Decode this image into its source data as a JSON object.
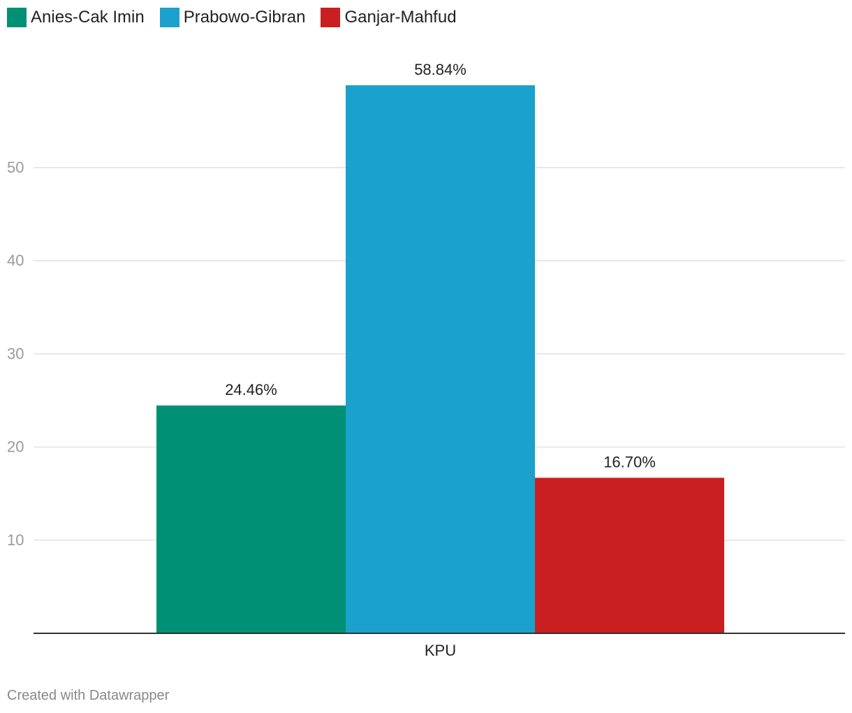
{
  "chart_data": {
    "type": "bar",
    "categories": [
      "KPU"
    ],
    "series": [
      {
        "name": "Anies-Cak Imin",
        "values": [
          24.46
        ],
        "label": "24.46%",
        "color": "#009075"
      },
      {
        "name": "Prabowo-Gibran",
        "values": [
          58.84
        ],
        "label": "58.84%",
        "color": "#1aa1cd"
      },
      {
        "name": "Ganjar-Mahfud",
        "values": [
          16.7
        ],
        "label": "16.70%",
        "color": "#c91f20"
      }
    ],
    "y_ticks": [
      "10",
      "20",
      "30",
      "40",
      "50"
    ],
    "ylim": [
      0,
      58.84
    ],
    "grid": true,
    "legend_position": "top-left",
    "title": "",
    "xlabel": "",
    "ylabel": ""
  },
  "footer": {
    "credit": "Created with Datawrapper"
  }
}
